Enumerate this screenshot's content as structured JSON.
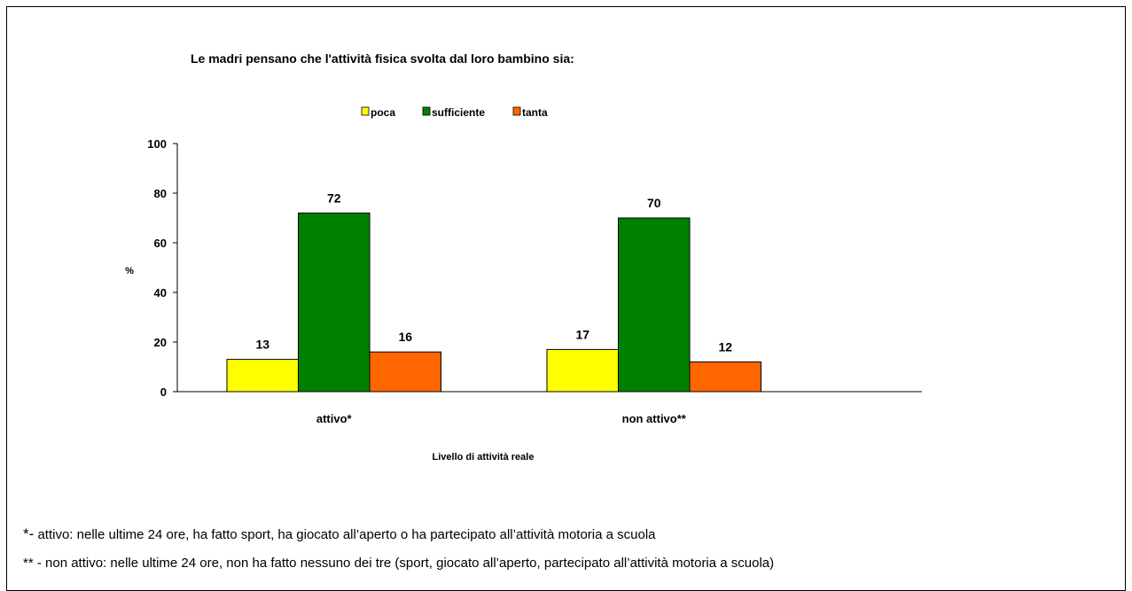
{
  "chart_data": {
    "type": "bar",
    "title": "Le madri pensano che l'attività fisica svolta dal loro bambino  sia:",
    "xlabel": "Livello di attività reale",
    "ylabel": "%",
    "ylim": [
      0,
      100
    ],
    "yticks": [
      0,
      20,
      40,
      60,
      80,
      100
    ],
    "categories": [
      "attivo*",
      "non attivo**"
    ],
    "series": [
      {
        "name": "poca",
        "values": [
          13,
          17
        ],
        "color": "#ffff00"
      },
      {
        "name": "sufficiente",
        "values": [
          72,
          70
        ],
        "color": "#008000"
      },
      {
        "name": "tanta",
        "values": [
          16,
          12
        ],
        "color": "#ff6600"
      }
    ],
    "grid": false,
    "legend_position": "top"
  },
  "footnotes": {
    "fn1_marker": "*-",
    "fn1_text": " attivo: nelle ultime 24 ore, ha fatto sport, ha giocato all’aperto o ha partecipato all’attività motoria a scuola",
    "fn2_text": "** - non attivo: nelle ultime 24 ore, non ha fatto nessuno dei tre (sport, giocato all’aperto, partecipato all’attività motoria a scuola)"
  }
}
